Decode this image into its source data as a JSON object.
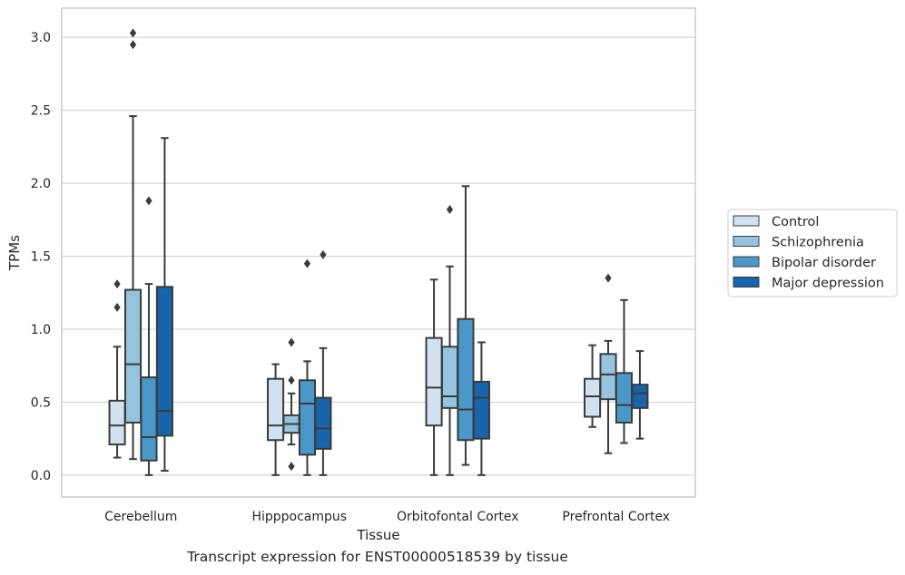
{
  "caption": "Transcript expression for ENST00000518539 by tissue",
  "colors": {
    "grid": "#cccccc",
    "frame": "#cccccc",
    "line": "#3b3b3b",
    "text": "#262626"
  },
  "chart_data": {
    "type": "box",
    "xlabel": "Tissue",
    "ylabel": "TPMs",
    "ylim": [
      -0.15,
      3.2
    ],
    "yticks": [
      0.0,
      0.5,
      1.0,
      1.5,
      2.0,
      2.5,
      3.0
    ],
    "ytick_labels": [
      "0.0",
      "0.5",
      "1.0",
      "1.5",
      "2.0",
      "2.5",
      "3.0"
    ],
    "grid": true,
    "legend_position": "right",
    "categories": [
      "Cerebellum",
      "Hipppocampus",
      "Orbitofontal Cortex",
      "Prefrontal Cortex"
    ],
    "series": [
      {
        "name": "Control",
        "color": "#d0e1f2",
        "boxes": [
          {
            "whislo": 0.12,
            "q1": 0.21,
            "med": 0.34,
            "q3": 0.51,
            "whishi": 0.88,
            "fliers": [
              1.15,
              1.31
            ]
          },
          {
            "whislo": 0.0,
            "q1": 0.24,
            "med": 0.34,
            "q3": 0.66,
            "whishi": 0.76,
            "fliers": []
          },
          {
            "whislo": 0.0,
            "q1": 0.34,
            "med": 0.6,
            "q3": 0.94,
            "whishi": 1.34,
            "fliers": []
          },
          {
            "whislo": 0.33,
            "q1": 0.4,
            "med": 0.54,
            "q3": 0.66,
            "whishi": 0.89,
            "fliers": []
          }
        ]
      },
      {
        "name": "Schizophrenia",
        "color": "#94c4df",
        "boxes": [
          {
            "whislo": 0.11,
            "q1": 0.36,
            "med": 0.76,
            "q3": 1.27,
            "whishi": 2.46,
            "fliers": [
              2.95,
              3.03
            ]
          },
          {
            "whislo": 0.21,
            "q1": 0.29,
            "med": 0.35,
            "q3": 0.41,
            "whishi": 0.56,
            "fliers": [
              0.06,
              0.65,
              0.91
            ]
          },
          {
            "whislo": 0.0,
            "q1": 0.46,
            "med": 0.54,
            "q3": 0.88,
            "whishi": 1.43,
            "fliers": [
              1.82
            ]
          },
          {
            "whislo": 0.15,
            "q1": 0.52,
            "med": 0.69,
            "q3": 0.83,
            "whishi": 0.92,
            "fliers": [
              1.35
            ]
          }
        ]
      },
      {
        "name": "Bipolar disorder",
        "color": "#4a98c9",
        "boxes": [
          {
            "whislo": 0.0,
            "q1": 0.1,
            "med": 0.26,
            "q3": 0.67,
            "whishi": 1.31,
            "fliers": [
              1.88
            ]
          },
          {
            "whislo": 0.0,
            "q1": 0.14,
            "med": 0.49,
            "q3": 0.65,
            "whishi": 0.78,
            "fliers": [
              1.45
            ]
          },
          {
            "whislo": 0.07,
            "q1": 0.24,
            "med": 0.45,
            "q3": 1.07,
            "whishi": 1.98,
            "fliers": []
          },
          {
            "whislo": 0.22,
            "q1": 0.36,
            "med": 0.48,
            "q3": 0.7,
            "whishi": 1.2,
            "fliers": []
          }
        ]
      },
      {
        "name": "Major depression",
        "color": "#1764ab",
        "boxes": [
          {
            "whislo": 0.03,
            "q1": 0.27,
            "med": 0.44,
            "q3": 1.29,
            "whishi": 2.31,
            "fliers": []
          },
          {
            "whislo": 0.0,
            "q1": 0.18,
            "med": 0.32,
            "q3": 0.53,
            "whishi": 0.87,
            "fliers": [
              1.51
            ]
          },
          {
            "whislo": 0.0,
            "q1": 0.25,
            "med": 0.53,
            "q3": 0.64,
            "whishi": 0.91,
            "fliers": []
          },
          {
            "whislo": 0.25,
            "q1": 0.46,
            "med": 0.56,
            "q3": 0.62,
            "whishi": 0.85,
            "fliers": []
          }
        ]
      }
    ]
  }
}
